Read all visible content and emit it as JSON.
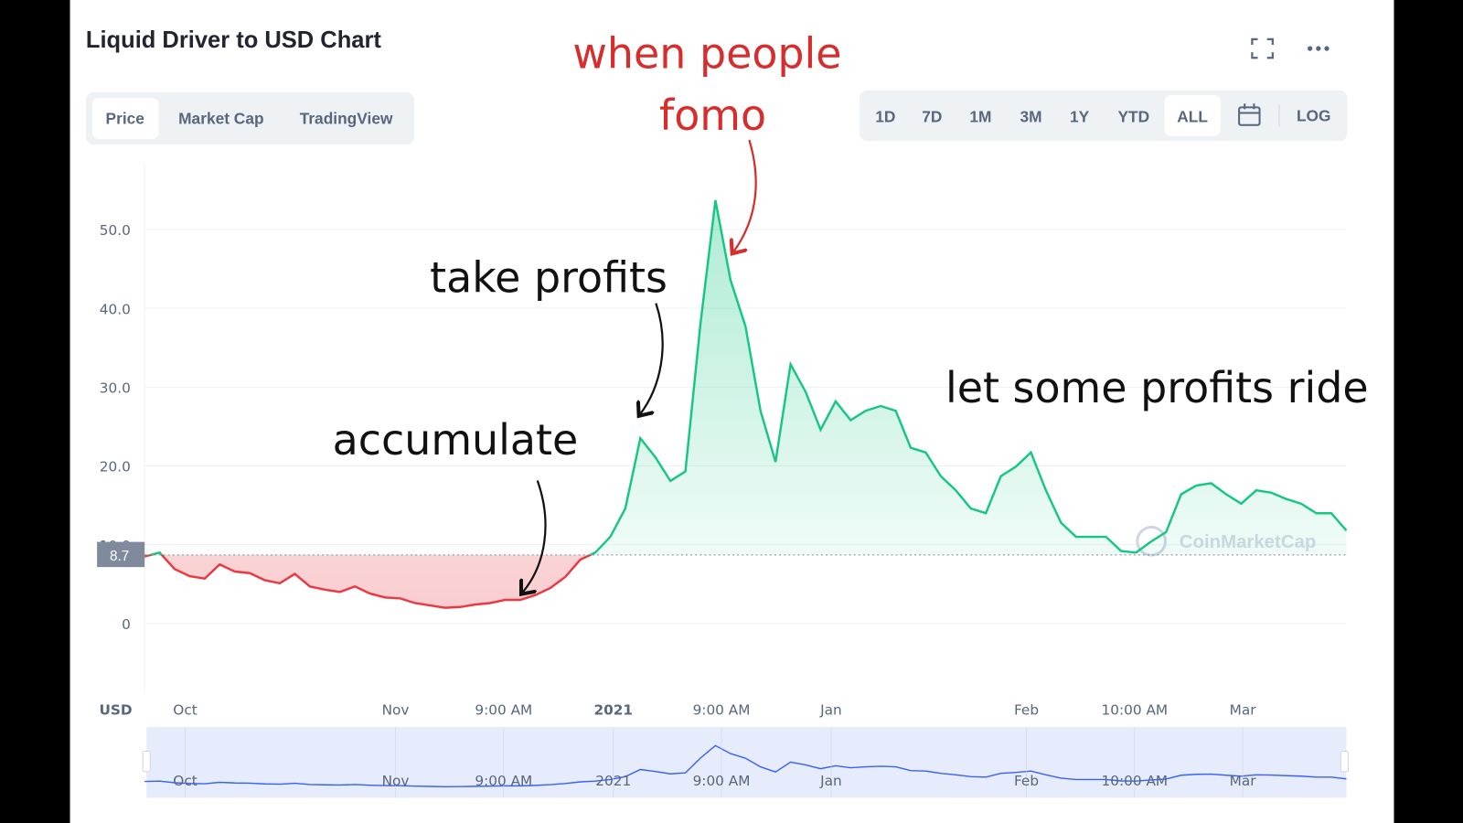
{
  "header": {
    "title": "Liquid Driver to USD Chart",
    "tabs": [
      "Price",
      "Market Cap",
      "TradingView"
    ],
    "ranges": [
      "1D",
      "7D",
      "1M",
      "3M",
      "1Y",
      "YTD",
      "ALL",
      "LOG"
    ]
  },
  "chart_data": {
    "type": "line",
    "series": [
      {
        "color": "#16c784",
        "values": [
          8.5,
          9.0,
          6.9,
          6.0,
          5.7,
          7.5,
          6.6,
          6.4,
          5.5,
          5.1,
          6.3,
          4.7,
          4.3,
          4.0,
          4.7,
          3.8,
          3.3,
          3.2,
          2.6,
          2.3,
          2.0,
          2.1,
          2.4,
          2.6,
          3.0,
          3.0,
          3.6,
          4.5,
          5.9,
          8.1,
          9.0,
          11.0,
          14.6,
          23.5,
          21.1,
          18.1,
          19.3,
          38.0,
          53.7,
          43.6,
          37.7,
          27.0,
          20.5,
          32.9,
          29.4,
          24.6,
          28.2,
          25.8,
          27.0,
          27.6,
          27.0,
          22.3,
          21.7,
          18.7,
          16.9,
          14.6,
          14.0,
          18.7,
          19.9,
          21.7,
          16.9,
          12.8,
          11.0,
          11.0,
          11.0,
          9.2,
          9.0,
          10.4,
          11.6,
          16.4,
          17.5,
          17.8,
          16.4,
          15.2,
          16.9,
          16.6,
          15.8,
          15.2,
          14.0,
          14.0,
          11.8
        ]
      }
    ],
    "below_color": "#ea3943",
    "current_price": 8.7,
    "xlim": [
      0,
      80
    ],
    "xticks": [
      {
        "value": 2.7,
        "label": "Oct"
      },
      {
        "value": 16.7,
        "label": "Nov"
      },
      {
        "value": 23.9,
        "label": "9:00 AM"
      },
      {
        "value": 31.2,
        "label": "2021"
      },
      {
        "value": 38.4,
        "label": "9:00 AM"
      },
      {
        "value": 45.7,
        "label": "Jan"
      },
      {
        "value": 58.7,
        "label": "Feb"
      },
      {
        "value": 65.9,
        "label": "10:00 AM"
      },
      {
        "value": 73.1,
        "label": "Mar"
      }
    ],
    "ylim": [
      -8.5,
      58.4
    ],
    "yticks": [
      0,
      {
        "value": 10,
        "label": "10.0"
      },
      {
        "value": 20,
        "label": "20.0"
      },
      {
        "value": 30,
        "label": "30.0"
      },
      {
        "value": 40,
        "label": "40.0"
      },
      {
        "value": 50,
        "label": "50.0"
      }
    ],
    "grid": true,
    "currency_label": "USD",
    "watermark": "CoinMarketCap",
    "annotations": [
      {
        "lines": [
          "when people",
          "fomo"
        ],
        "color": "#d62d2d"
      },
      {
        "lines": [
          "take profits"
        ],
        "color": "#111111"
      },
      {
        "lines": [
          "accumulate"
        ],
        "color": "#111111"
      },
      {
        "lines": [
          "let some profits ride"
        ],
        "color": "#111111"
      }
    ]
  }
}
